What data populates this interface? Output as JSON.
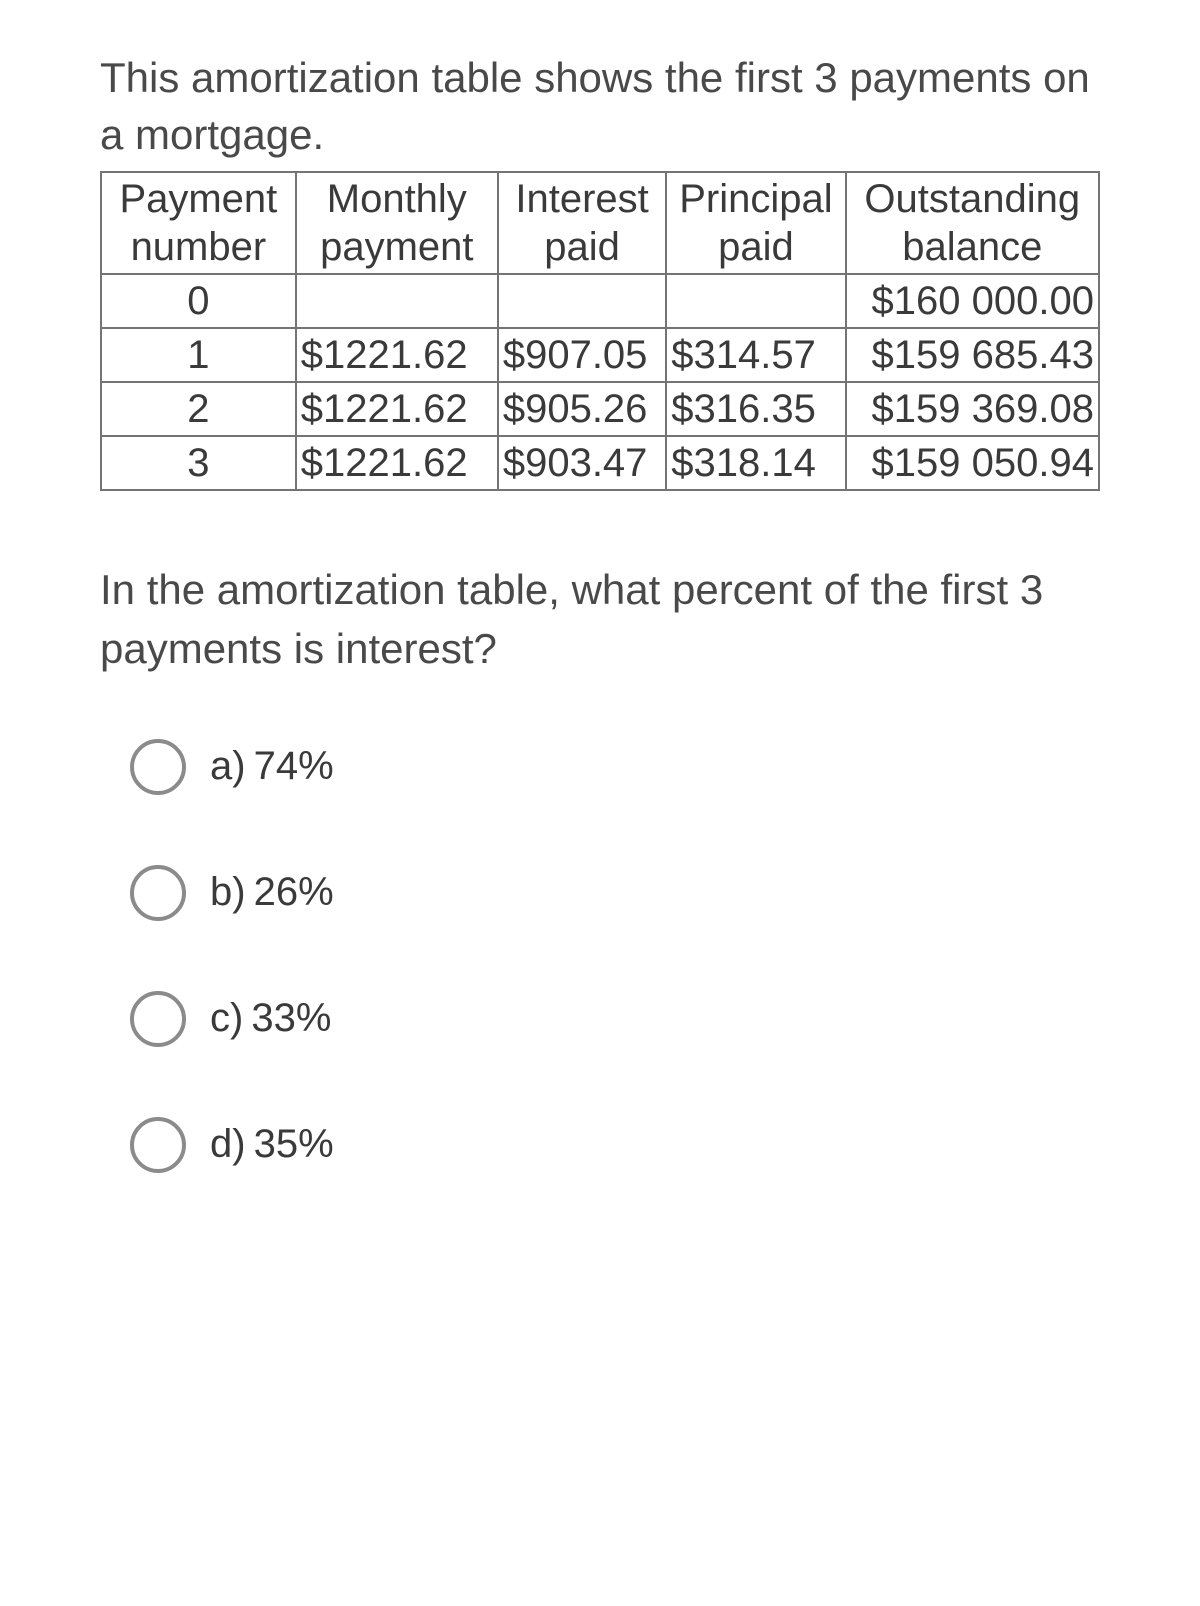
{
  "intro": "This amortization table shows the first 3 payments on a mortgage.",
  "table": {
    "headers": {
      "col1": "Payment number",
      "col2": "Monthly payment",
      "col3": "Interest paid",
      "col4": "Principal paid",
      "col5": "Outstanding balance"
    },
    "rows": [
      {
        "num": "0",
        "monthly": "",
        "interest": "",
        "principal": "",
        "balance": "$160 000.00"
      },
      {
        "num": "1",
        "monthly": "$1221.62",
        "interest": "$907.05",
        "principal": "$314.57",
        "balance": "$159 685.43"
      },
      {
        "num": "2",
        "monthly": "$1221.62",
        "interest": "$905.26",
        "principal": "$316.35",
        "balance": "$159 369.08"
      },
      {
        "num": "3",
        "monthly": "$1221.62",
        "interest": "$903.47",
        "principal": "$318.14",
        "balance": "$159 050.94"
      }
    ]
  },
  "question": "In the amortization table, what percent of the first 3 payments is interest?",
  "options": [
    {
      "letter": "a)",
      "text": "74%"
    },
    {
      "letter": "b)",
      "text": "26%"
    },
    {
      "letter": "c)",
      "text": "33%"
    },
    {
      "letter": "d)",
      "text": "35%"
    }
  ],
  "colors": {
    "text": "#3a3a3a",
    "border": "#747474",
    "radio_border": "#8b8b8b",
    "background": "#ffffff"
  }
}
